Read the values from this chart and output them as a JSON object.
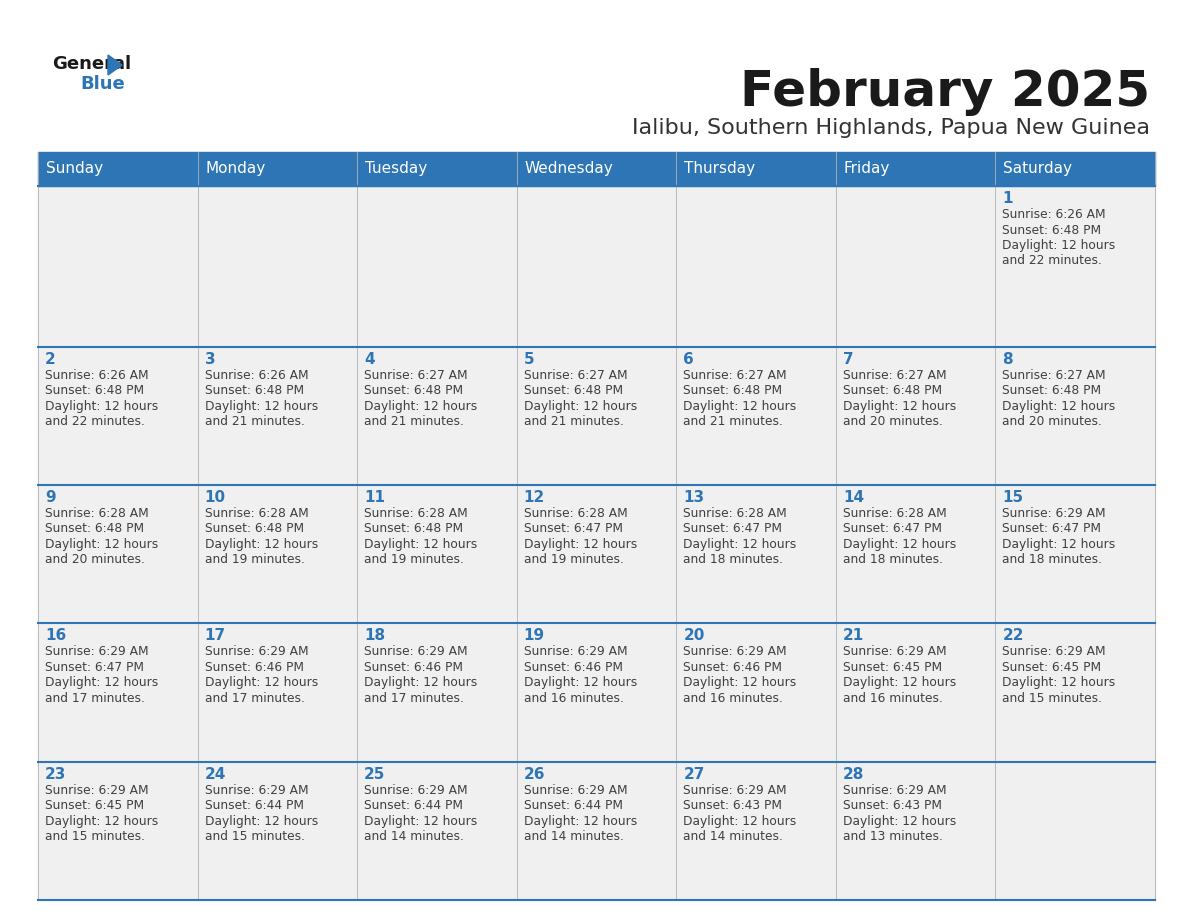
{
  "title": "February 2025",
  "subtitle": "Ialibu, Southern Highlands, Papua New Guinea",
  "days_of_week": [
    "Sunday",
    "Monday",
    "Tuesday",
    "Wednesday",
    "Thursday",
    "Friday",
    "Saturday"
  ],
  "header_bg": "#2e75b6",
  "header_text": "#ffffff",
  "row_bg": "#f0f0f0",
  "separator_color": "#2e75b6",
  "day_number_color": "#2e75b6",
  "cell_text_color": "#404040",
  "title_color": "#1a1a1a",
  "subtitle_color": "#333333",
  "calendar_data": [
    [
      null,
      null,
      null,
      null,
      null,
      null,
      {
        "day": 1,
        "sunrise": "6:26 AM",
        "sunset": "6:48 PM",
        "daylight_hours": 12,
        "daylight_minutes": 22
      }
    ],
    [
      {
        "day": 2,
        "sunrise": "6:26 AM",
        "sunset": "6:48 PM",
        "daylight_hours": 12,
        "daylight_minutes": 22
      },
      {
        "day": 3,
        "sunrise": "6:26 AM",
        "sunset": "6:48 PM",
        "daylight_hours": 12,
        "daylight_minutes": 21
      },
      {
        "day": 4,
        "sunrise": "6:27 AM",
        "sunset": "6:48 PM",
        "daylight_hours": 12,
        "daylight_minutes": 21
      },
      {
        "day": 5,
        "sunrise": "6:27 AM",
        "sunset": "6:48 PM",
        "daylight_hours": 12,
        "daylight_minutes": 21
      },
      {
        "day": 6,
        "sunrise": "6:27 AM",
        "sunset": "6:48 PM",
        "daylight_hours": 12,
        "daylight_minutes": 21
      },
      {
        "day": 7,
        "sunrise": "6:27 AM",
        "sunset": "6:48 PM",
        "daylight_hours": 12,
        "daylight_minutes": 20
      },
      {
        "day": 8,
        "sunrise": "6:27 AM",
        "sunset": "6:48 PM",
        "daylight_hours": 12,
        "daylight_minutes": 20
      }
    ],
    [
      {
        "day": 9,
        "sunrise": "6:28 AM",
        "sunset": "6:48 PM",
        "daylight_hours": 12,
        "daylight_minutes": 20
      },
      {
        "day": 10,
        "sunrise": "6:28 AM",
        "sunset": "6:48 PM",
        "daylight_hours": 12,
        "daylight_minutes": 19
      },
      {
        "day": 11,
        "sunrise": "6:28 AM",
        "sunset": "6:48 PM",
        "daylight_hours": 12,
        "daylight_minutes": 19
      },
      {
        "day": 12,
        "sunrise": "6:28 AM",
        "sunset": "6:47 PM",
        "daylight_hours": 12,
        "daylight_minutes": 19
      },
      {
        "day": 13,
        "sunrise": "6:28 AM",
        "sunset": "6:47 PM",
        "daylight_hours": 12,
        "daylight_minutes": 18
      },
      {
        "day": 14,
        "sunrise": "6:28 AM",
        "sunset": "6:47 PM",
        "daylight_hours": 12,
        "daylight_minutes": 18
      },
      {
        "day": 15,
        "sunrise": "6:29 AM",
        "sunset": "6:47 PM",
        "daylight_hours": 12,
        "daylight_minutes": 18
      }
    ],
    [
      {
        "day": 16,
        "sunrise": "6:29 AM",
        "sunset": "6:47 PM",
        "daylight_hours": 12,
        "daylight_minutes": 17
      },
      {
        "day": 17,
        "sunrise": "6:29 AM",
        "sunset": "6:46 PM",
        "daylight_hours": 12,
        "daylight_minutes": 17
      },
      {
        "day": 18,
        "sunrise": "6:29 AM",
        "sunset": "6:46 PM",
        "daylight_hours": 12,
        "daylight_minutes": 17
      },
      {
        "day": 19,
        "sunrise": "6:29 AM",
        "sunset": "6:46 PM",
        "daylight_hours": 12,
        "daylight_minutes": 16
      },
      {
        "day": 20,
        "sunrise": "6:29 AM",
        "sunset": "6:46 PM",
        "daylight_hours": 12,
        "daylight_minutes": 16
      },
      {
        "day": 21,
        "sunrise": "6:29 AM",
        "sunset": "6:45 PM",
        "daylight_hours": 12,
        "daylight_minutes": 16
      },
      {
        "day": 22,
        "sunrise": "6:29 AM",
        "sunset": "6:45 PM",
        "daylight_hours": 12,
        "daylight_minutes": 15
      }
    ],
    [
      {
        "day": 23,
        "sunrise": "6:29 AM",
        "sunset": "6:45 PM",
        "daylight_hours": 12,
        "daylight_minutes": 15
      },
      {
        "day": 24,
        "sunrise": "6:29 AM",
        "sunset": "6:44 PM",
        "daylight_hours": 12,
        "daylight_minutes": 15
      },
      {
        "day": 25,
        "sunrise": "6:29 AM",
        "sunset": "6:44 PM",
        "daylight_hours": 12,
        "daylight_minutes": 14
      },
      {
        "day": 26,
        "sunrise": "6:29 AM",
        "sunset": "6:44 PM",
        "daylight_hours": 12,
        "daylight_minutes": 14
      },
      {
        "day": 27,
        "sunrise": "6:29 AM",
        "sunset": "6:43 PM",
        "daylight_hours": 12,
        "daylight_minutes": 14
      },
      {
        "day": 28,
        "sunrise": "6:29 AM",
        "sunset": "6:43 PM",
        "daylight_hours": 12,
        "daylight_minutes": 13
      },
      null
    ]
  ]
}
